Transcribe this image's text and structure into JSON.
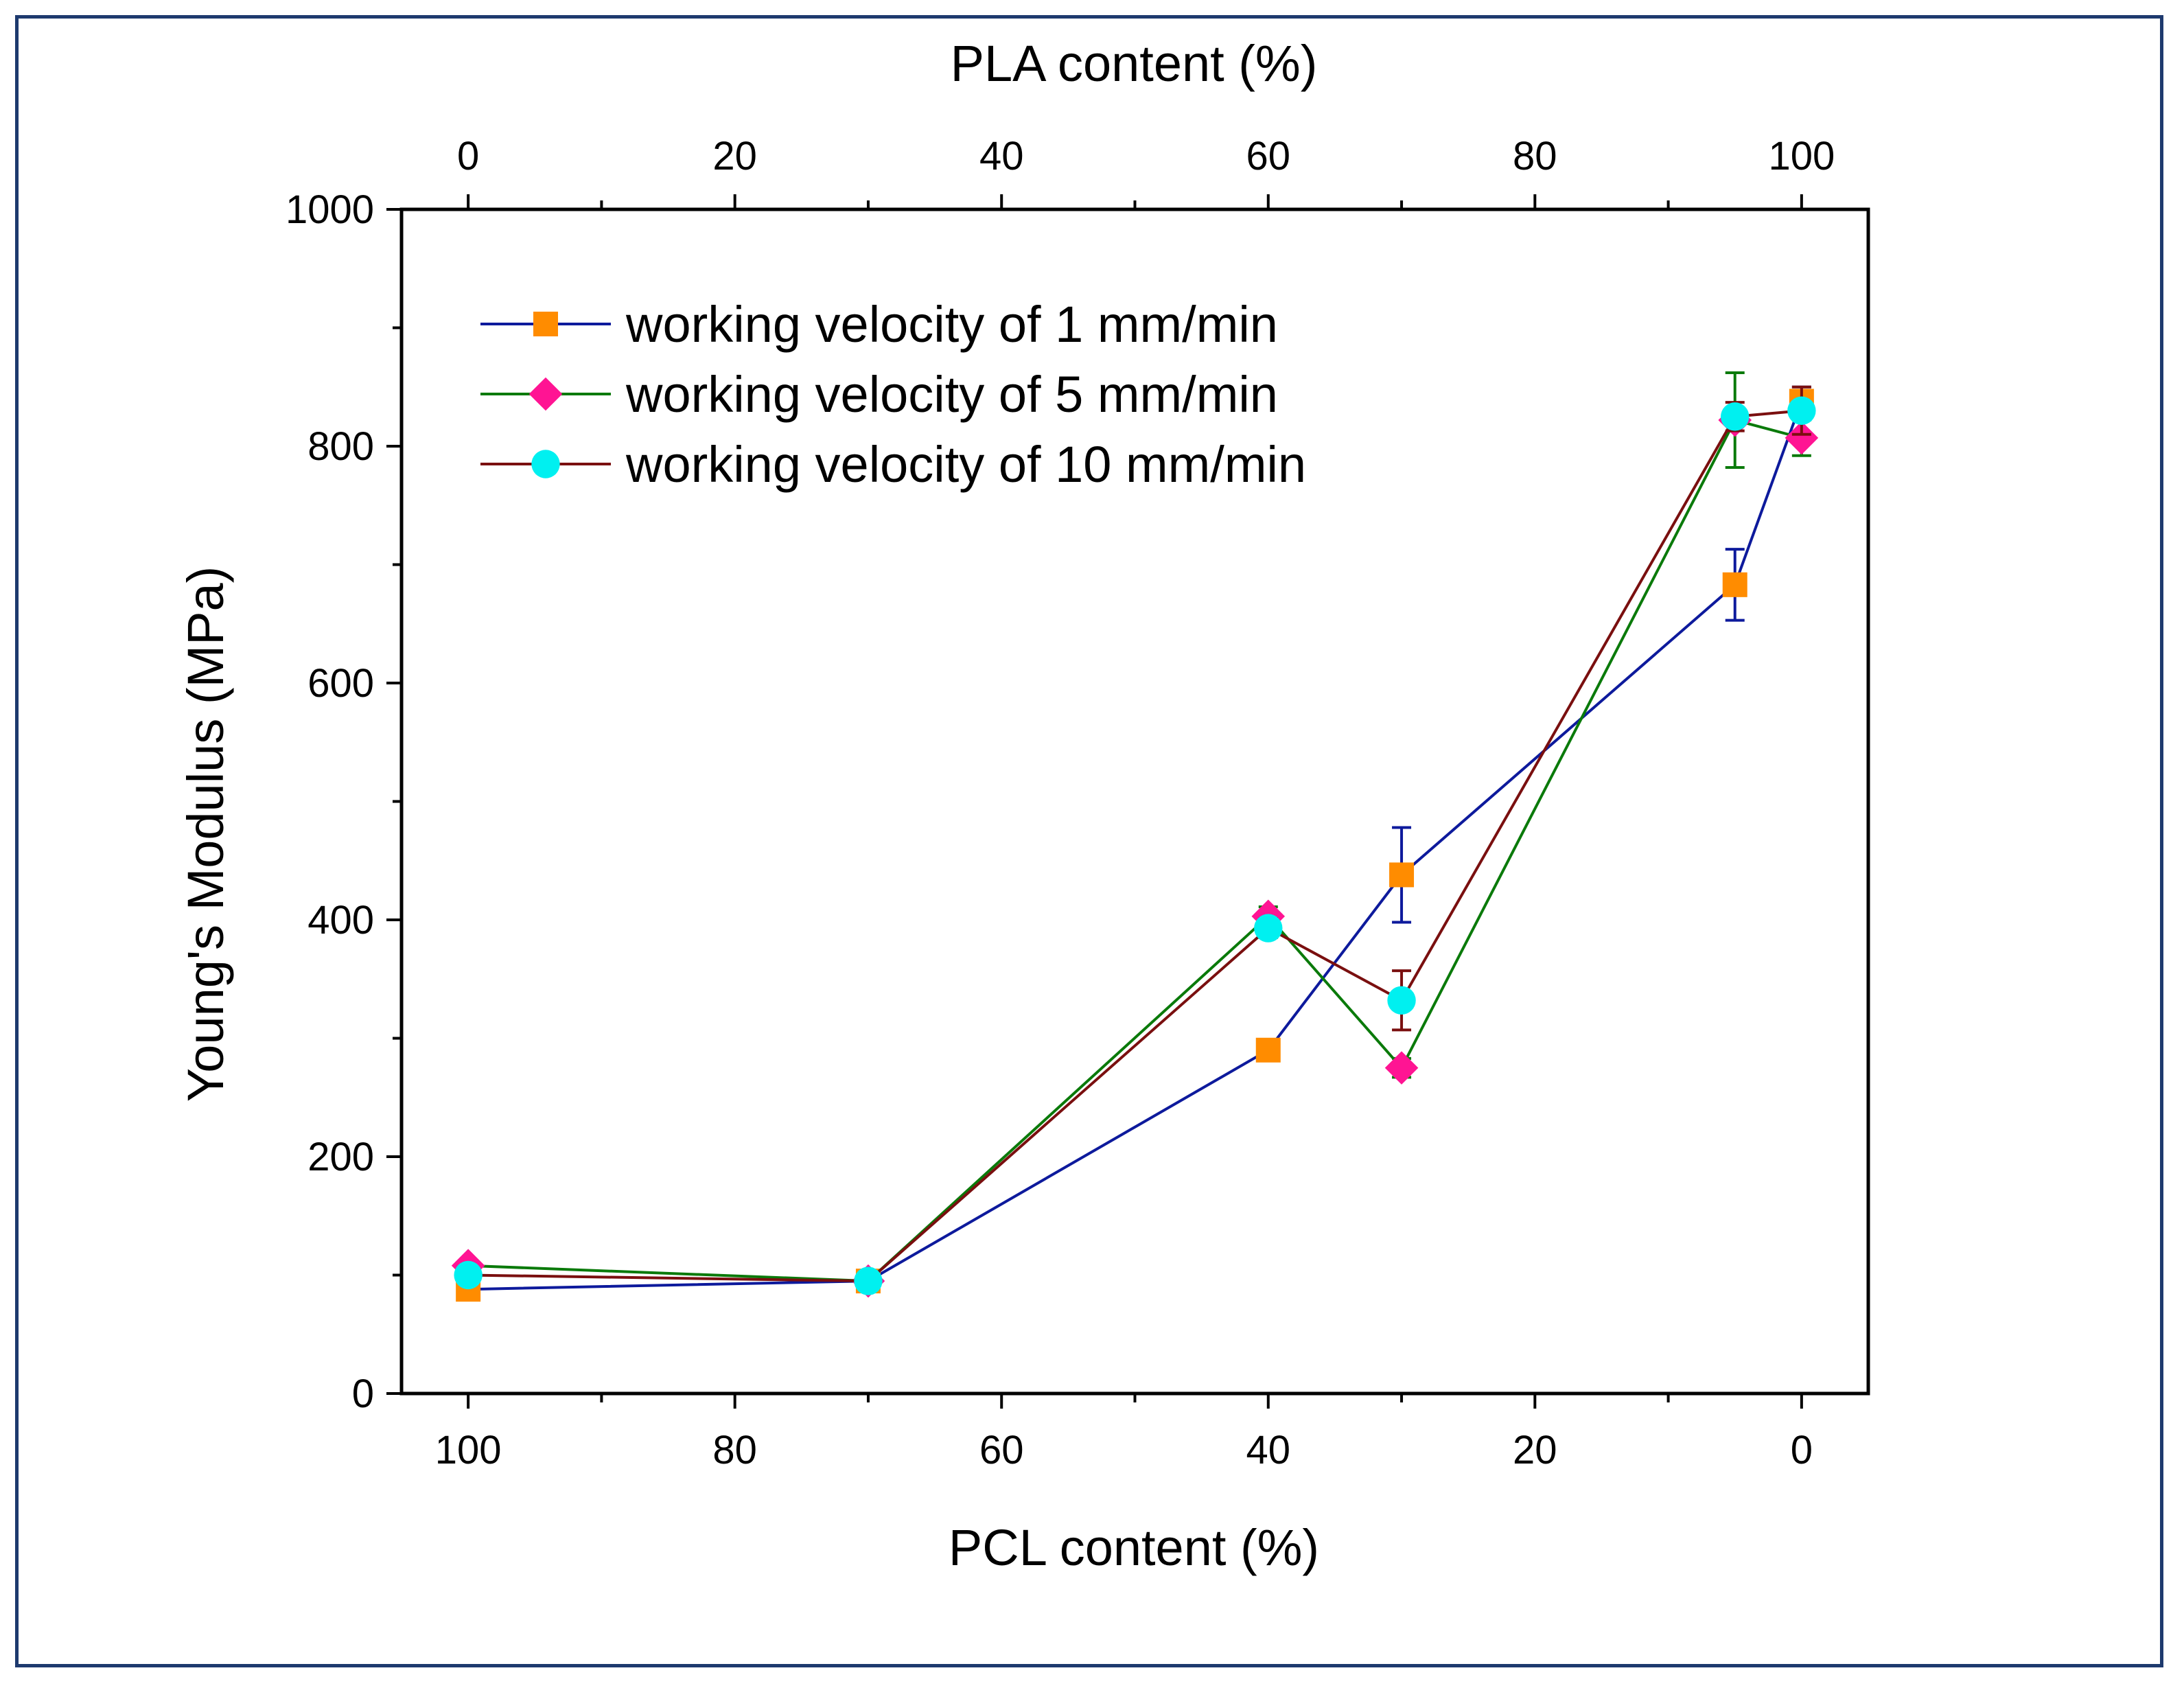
{
  "chart_data": {
    "type": "line",
    "title": "",
    "xlabel": "PCL content (%)",
    "x2label": "PLA content (%)",
    "ylabel": "Young's Modulus (MPa)",
    "xlim": [
      105,
      -5
    ],
    "ylim": [
      0,
      1000
    ],
    "x_ticks": [
      100,
      80,
      60,
      40,
      20,
      0
    ],
    "x2_ticks": [
      0,
      20,
      40,
      60,
      80,
      100
    ],
    "y_ticks": [
      0,
      200,
      400,
      600,
      800,
      1000
    ],
    "grid": false,
    "legend_position": "top-left",
    "x": [
      100,
      70,
      40,
      30,
      5,
      0
    ],
    "series": [
      {
        "name": "working velocity of 1 mm/min",
        "color": "#0d1a9c",
        "marker": "square",
        "marker_color": "#ff8c00",
        "values": [
          88,
          95,
          290,
          438,
          683,
          838
        ],
        "errors": [
          3,
          3,
          7,
          40,
          30,
          12
        ]
      },
      {
        "name": "working velocity of 5 mm/min",
        "color": "#0a7a0a",
        "marker": "diamond",
        "marker_color": "#ff1493",
        "values": [
          108,
          95,
          403,
          275,
          822,
          807
        ],
        "errors": [
          4,
          3,
          8,
          8,
          40,
          15
        ]
      },
      {
        "name": "working velocity of 10 mm/min",
        "color": "#7a0f0f",
        "marker": "circle",
        "marker_color": "#00f0f0",
        "values": [
          100,
          95,
          393,
          332,
          825,
          830
        ],
        "errors": [
          4,
          3,
          8,
          25,
          12,
          20
        ]
      }
    ]
  }
}
